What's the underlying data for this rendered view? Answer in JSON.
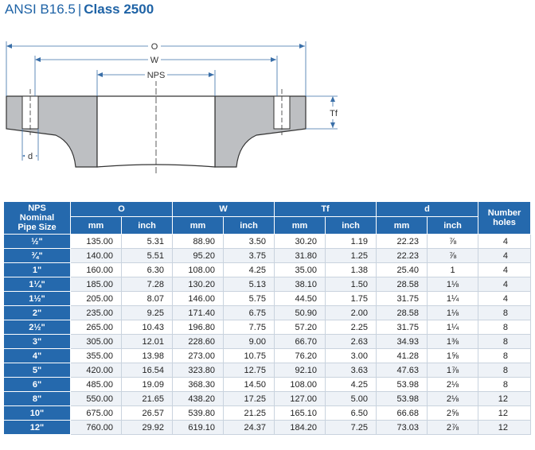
{
  "title": {
    "standard": "ANSI B16.5",
    "separator": "|",
    "class_label": "Class 2500"
  },
  "drawing": {
    "label_o": "O",
    "label_w": "W",
    "label_nps": "NPS",
    "label_tf": "Tf",
    "label_d": "d"
  },
  "table": {
    "header": {
      "nps": "NPS",
      "nps_sub1": "Nominal",
      "nps_sub2": "Pipe Size",
      "o": "O",
      "w": "W",
      "tf": "Tf",
      "d": "d",
      "holes1": "Number",
      "holes2": "holes",
      "mm": "mm",
      "inch": "inch"
    },
    "rows": [
      [
        "½\"",
        "135.00",
        "5.31",
        "88.90",
        "3.50",
        "30.20",
        "1.19",
        "22.23",
        "⅞",
        "4"
      ],
      [
        "¾\"",
        "140.00",
        "5.51",
        "95.20",
        "3.75",
        "31.80",
        "1.25",
        "22.23",
        "⅞",
        "4"
      ],
      [
        "1\"",
        "160.00",
        "6.30",
        "108.00",
        "4.25",
        "35.00",
        "1.38",
        "25.40",
        "1",
        "4"
      ],
      [
        "1¼\"",
        "185.00",
        "7.28",
        "130.20",
        "5.13",
        "38.10",
        "1.50",
        "28.58",
        "1⅛",
        "4"
      ],
      [
        "1½\"",
        "205.00",
        "8.07",
        "146.00",
        "5.75",
        "44.50",
        "1.75",
        "31.75",
        "1¼",
        "4"
      ],
      [
        "2\"",
        "235.00",
        "9.25",
        "171.40",
        "6.75",
        "50.90",
        "2.00",
        "28.58",
        "1⅛",
        "8"
      ],
      [
        "2½\"",
        "265.00",
        "10.43",
        "196.80",
        "7.75",
        "57.20",
        "2.25",
        "31.75",
        "1¼",
        "8"
      ],
      [
        "3\"",
        "305.00",
        "12.01",
        "228.60",
        "9.00",
        "66.70",
        "2.63",
        "34.93",
        "1⅜",
        "8"
      ],
      [
        "4\"",
        "355.00",
        "13.98",
        "273.00",
        "10.75",
        "76.20",
        "3.00",
        "41.28",
        "1⅝",
        "8"
      ],
      [
        "5\"",
        "420.00",
        "16.54",
        "323.80",
        "12.75",
        "92.10",
        "3.63",
        "47.63",
        "1⅞",
        "8"
      ],
      [
        "6\"",
        "485.00",
        "19.09",
        "368.30",
        "14.50",
        "108.00",
        "4.25",
        "53.98",
        "2⅛",
        "8"
      ],
      [
        "8\"",
        "550.00",
        "21.65",
        "438.20",
        "17.25",
        "127.00",
        "5.00",
        "53.98",
        "2⅛",
        "12"
      ],
      [
        "10\"",
        "675.00",
        "26.57",
        "539.80",
        "21.25",
        "165.10",
        "6.50",
        "66.68",
        "2⅝",
        "12"
      ],
      [
        "12\"",
        "760.00",
        "29.92",
        "619.10",
        "24.37",
        "184.20",
        "7.25",
        "73.03",
        "2⅞",
        "12"
      ]
    ]
  }
}
